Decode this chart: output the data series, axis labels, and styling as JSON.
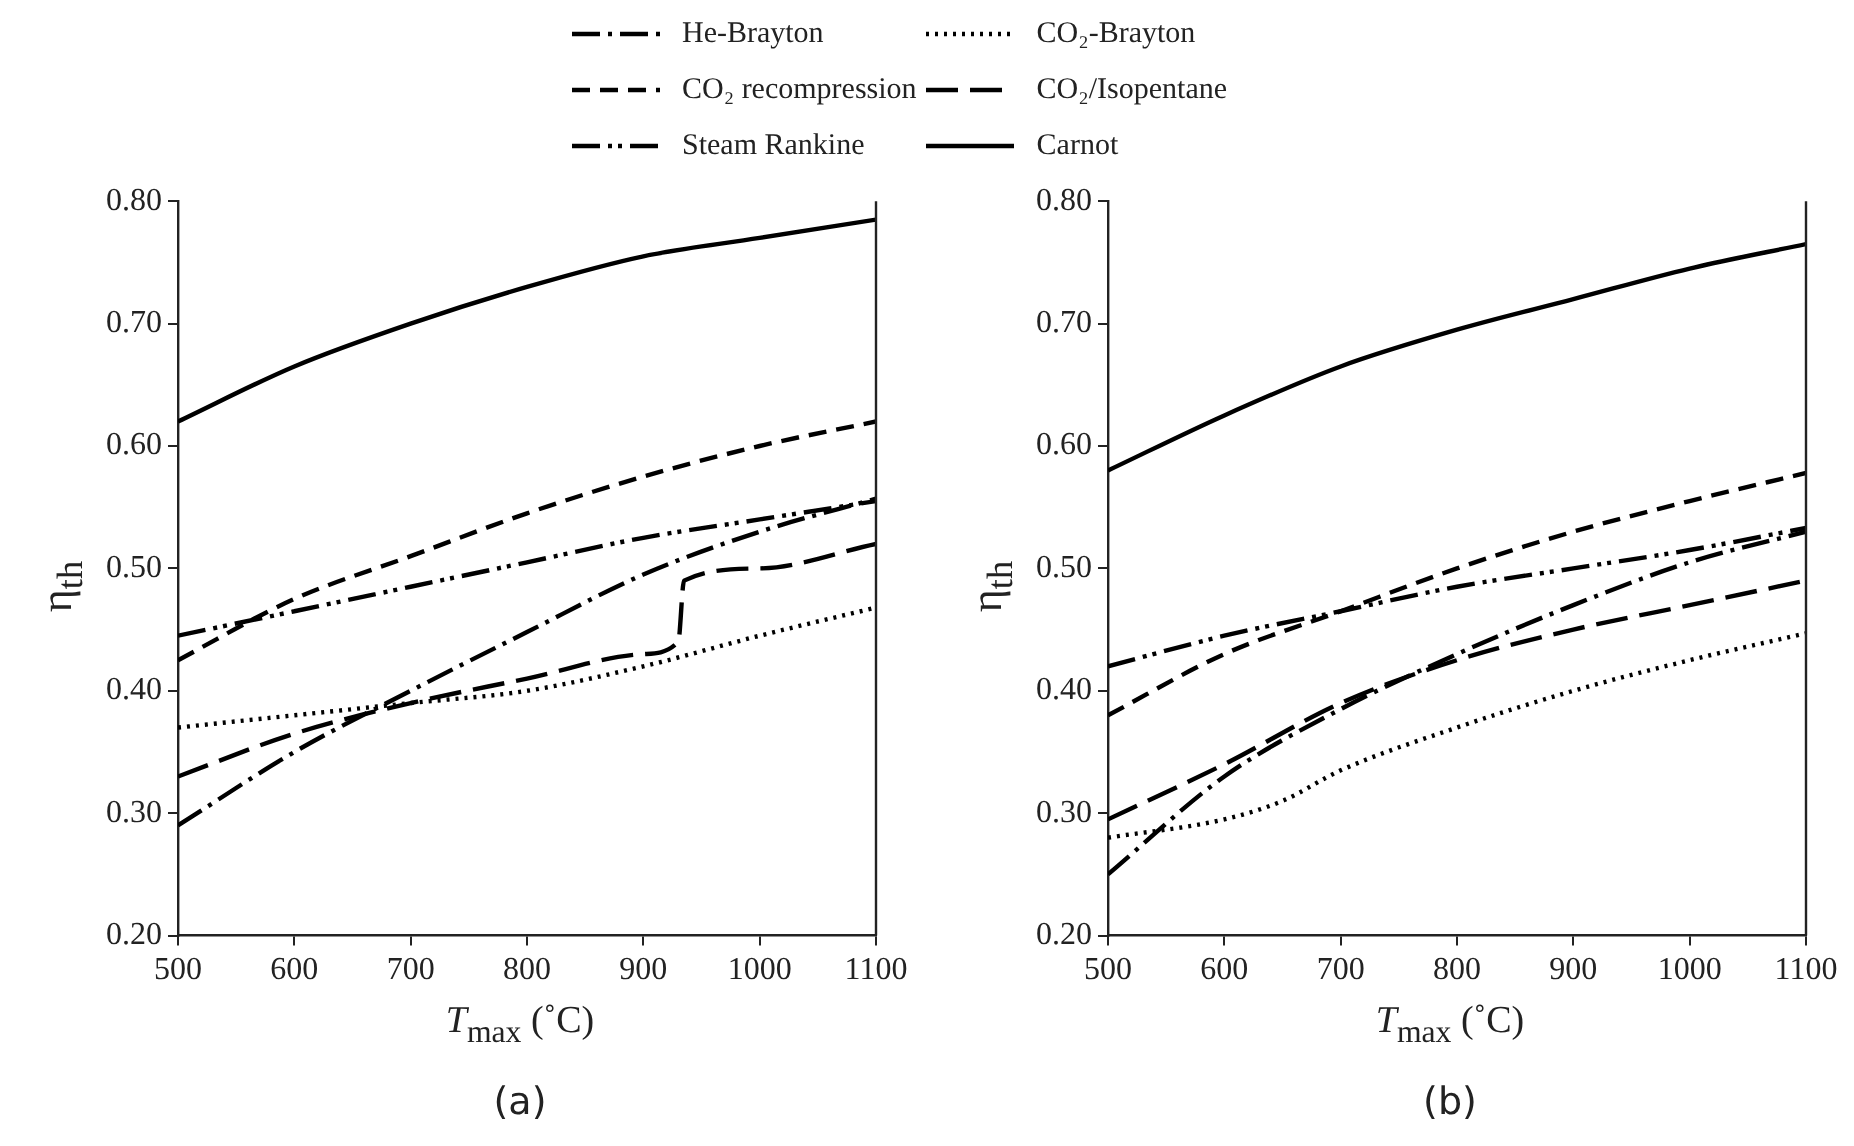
{
  "chart_data": [
    {
      "type": "line",
      "xlabel": "T$_{max}$ (˚C)",
      "ylabel": "η$_{th}$",
      "annotations": [
        "(a)"
      ],
      "legend": "top",
      "grid": false,
      "marker": "none",
      "xlim": [
        500,
        1100
      ],
      "xticks": [
        500,
        600,
        700,
        800,
        900,
        1000,
        1100
      ],
      "ylim": [
        0.2,
        0.8
      ],
      "yticks": [
        {
          "value": 0.2,
          "label": "0.20"
        },
        {
          "value": 0.3,
          "label": "0.30"
        },
        {
          "value": 0.4,
          "label": "0.40"
        },
        {
          "value": 0.5,
          "label": "0.50"
        },
        {
          "value": 0.6,
          "label": "0.60"
        },
        {
          "value": 0.7,
          "label": "0.70"
        },
        {
          "value": 0.8,
          "label": "0.80"
        }
      ],
      "series": [
        {
          "name": "He-Brayton",
          "color": "#000000",
          "line_style": "dashdot",
          "x": [
            500,
            600,
            700,
            800,
            900,
            1000,
            1100
          ],
          "values": [
            0.29,
            0.35,
            0.4,
            0.448,
            0.495,
            0.53,
            0.557
          ]
        },
        {
          "name": "CO₂-Brayton",
          "color": "#000000",
          "line_style": "dotted",
          "x": [
            500,
            600,
            700,
            800,
            900,
            1000,
            1100
          ],
          "values": [
            0.37,
            0.38,
            0.39,
            0.4,
            0.42,
            0.445,
            0.468
          ]
        },
        {
          "name": "CO₂ recompression",
          "color": "#000000",
          "line_style": "dashed",
          "x": [
            500,
            600,
            700,
            800,
            900,
            1000,
            1100
          ],
          "values": [
            0.425,
            0.475,
            0.51,
            0.545,
            0.575,
            0.6,
            0.62
          ]
        },
        {
          "name": "CO₂/Isopentane",
          "color": "#000000",
          "line_style": "longdash",
          "x": [
            500,
            600,
            700,
            800,
            900,
            930,
            935,
            1000,
            1100
          ],
          "values": [
            0.33,
            0.365,
            0.39,
            0.41,
            0.43,
            0.44,
            0.49,
            0.5,
            0.52
          ]
        },
        {
          "name": "Steam Rankine",
          "color": "#000000",
          "line_style": "dashdotdot",
          "x": [
            500,
            600,
            700,
            800,
            900,
            1000,
            1100
          ],
          "values": [
            0.445,
            0.465,
            0.485,
            0.505,
            0.525,
            0.54,
            0.555
          ]
        },
        {
          "name": "Carnot",
          "color": "#000000",
          "line_style": "solid",
          "x": [
            500,
            600,
            700,
            800,
            900,
            1000,
            1100
          ],
          "values": [
            0.62,
            0.665,
            0.7,
            0.73,
            0.755,
            0.77,
            0.785
          ]
        }
      ]
    },
    {
      "type": "line",
      "xlabel": "T$_{max}$ (˚C)",
      "ylabel": "η$_{th}$",
      "annotations": [
        "(b)"
      ],
      "grid": false,
      "marker": "none",
      "xlim": [
        500,
        1100
      ],
      "xticks": [
        500,
        600,
        700,
        800,
        900,
        1000,
        1100
      ],
      "ylim": [
        0.2,
        0.8
      ],
      "yticks": [
        {
          "value": 0.2,
          "label": "0.20"
        },
        {
          "value": 0.3,
          "label": "0.30"
        },
        {
          "value": 0.4,
          "label": "0.40"
        },
        {
          "value": 0.5,
          "label": "0.50"
        },
        {
          "value": 0.6,
          "label": "0.60"
        },
        {
          "value": 0.7,
          "label": "0.70"
        },
        {
          "value": 0.8,
          "label": "0.80"
        }
      ],
      "series": [
        {
          "color": "#000000",
          "line_style": "dashdot",
          "x": [
            500,
            600,
            700,
            800,
            900,
            1000,
            1100
          ],
          "values": [
            0.25,
            0.33,
            0.385,
            0.43,
            0.47,
            0.505,
            0.53
          ]
        },
        {
          "color": "#000000",
          "line_style": "dotted",
          "x": [
            500,
            600,
            650,
            700,
            800,
            900,
            1000,
            1100
          ],
          "values": [
            0.28,
            0.295,
            0.31,
            0.335,
            0.37,
            0.4,
            0.425,
            0.447
          ]
        },
        {
          "color": "#000000",
          "line_style": "dashed",
          "x": [
            500,
            600,
            700,
            800,
            900,
            1000,
            1100
          ],
          "values": [
            0.38,
            0.43,
            0.465,
            0.5,
            0.53,
            0.555,
            0.578
          ]
        },
        {
          "color": "#000000",
          "line_style": "longdash",
          "x": [
            500,
            600,
            700,
            800,
            900,
            1000,
            1100
          ],
          "values": [
            0.295,
            0.34,
            0.39,
            0.425,
            0.45,
            0.47,
            0.49
          ]
        },
        {
          "color": "#000000",
          "line_style": "dashdotdot",
          "x": [
            500,
            600,
            700,
            800,
            900,
            1000,
            1100
          ],
          "values": [
            0.42,
            0.445,
            0.465,
            0.485,
            0.5,
            0.515,
            0.533
          ]
        },
        {
          "color": "#000000",
          "line_style": "solid",
          "x": [
            500,
            600,
            700,
            800,
            900,
            1000,
            1100
          ],
          "values": [
            0.58,
            0.625,
            0.665,
            0.695,
            0.72,
            0.745,
            0.765
          ]
        }
      ]
    }
  ]
}
